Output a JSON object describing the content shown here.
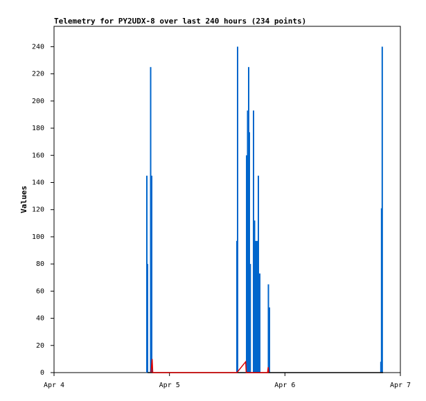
{
  "chart_data": {
    "type": "bar",
    "title": "Telemetry for PY2UDX-8 over last 240 hours (234 points)",
    "y_label": "Values",
    "xlim": [
      0,
      3
    ],
    "xticks": [
      {
        "value": 0,
        "label": "Apr 4"
      },
      {
        "value": 1,
        "label": "Apr 5"
      },
      {
        "value": 2,
        "label": "Apr 6"
      },
      {
        "value": 3,
        "label": "Apr 7"
      }
    ],
    "ylim": [
      0,
      255
    ],
    "yticks": [
      0,
      20,
      40,
      60,
      80,
      100,
      120,
      140,
      160,
      180,
      200,
      220,
      240
    ],
    "series": [
      {
        "color": "#0066cc",
        "x": [
          0.804,
          0.81,
          0.837,
          0.846,
          1.584,
          1.59,
          1.668,
          1.677,
          1.686,
          1.692,
          1.7,
          1.728,
          1.737,
          1.746,
          1.758,
          1.77,
          1.782,
          1.857,
          1.866,
          2.831,
          2.837,
          2.843
        ],
        "values": [
          145,
          80,
          225,
          145,
          97,
          240,
          160,
          193,
          225,
          177,
          80,
          193,
          112,
          97,
          97,
          145,
          73,
          65,
          48,
          8,
          121,
          240
        ]
      },
      {
        "type": "line",
        "color": "#000000",
        "x": [
          0.81,
          2.85
        ],
        "values": [
          0,
          0
        ]
      },
      {
        "type": "line",
        "color": "#dd0000",
        "x": [
          0.84,
          0.85,
          0.855,
          1.584,
          1.66,
          1.665,
          1.85,
          1.855,
          1.86
        ],
        "values": [
          0,
          10,
          0,
          0,
          8,
          0,
          0,
          4,
          0
        ]
      }
    ]
  }
}
